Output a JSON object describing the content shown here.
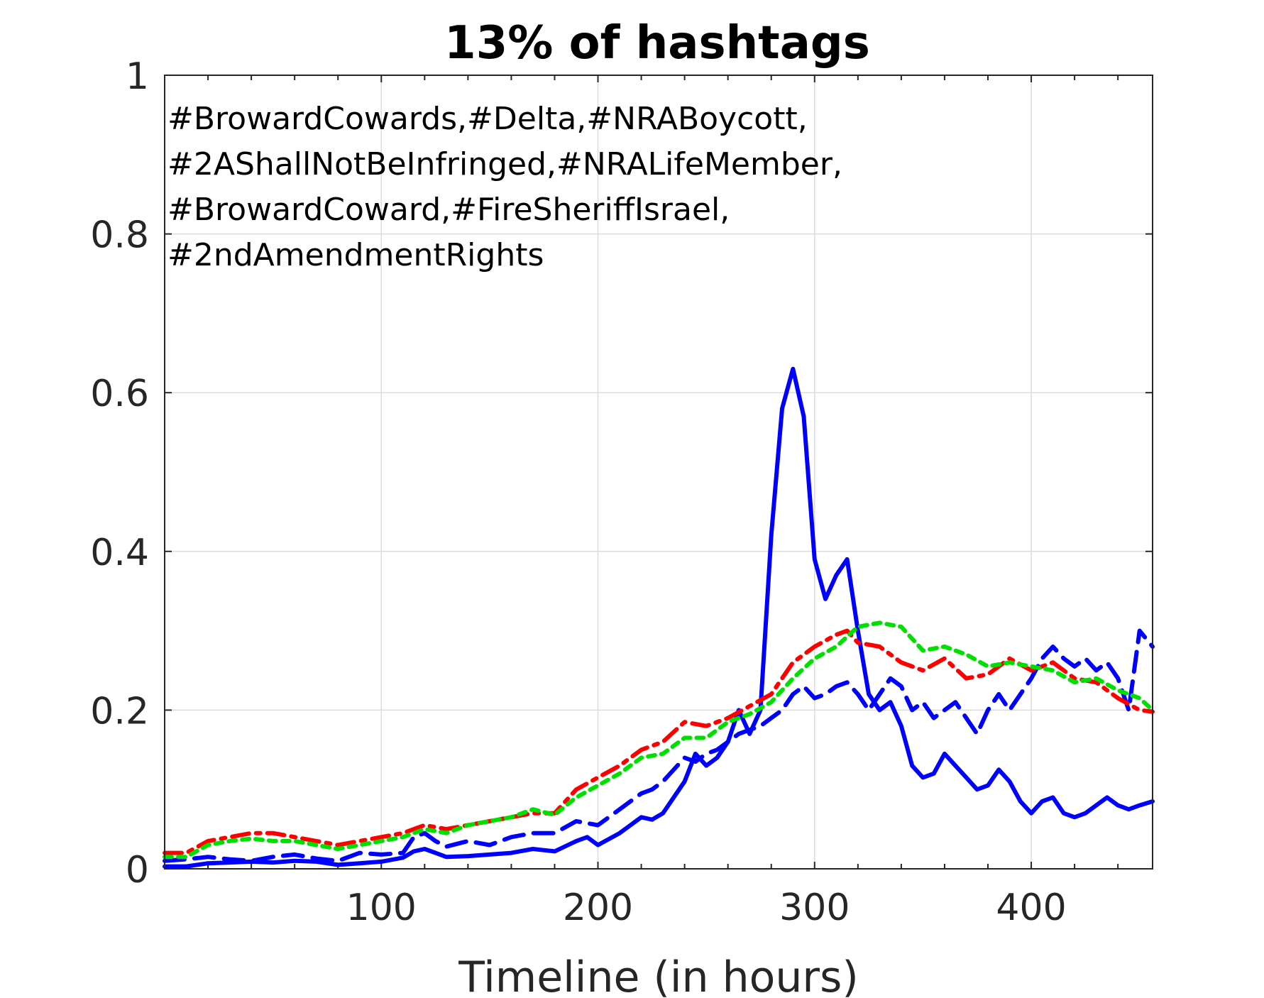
{
  "chart_data": {
    "type": "line",
    "title": "13% of hashtags",
    "xlabel": "Timeline (in hours)",
    "ylabel": "",
    "xlim": [
      0,
      456
    ],
    "ylim": [
      0,
      1
    ],
    "xticks": [
      100,
      200,
      300,
      400
    ],
    "xtick_labels": [
      "100",
      "200",
      "300",
      "400"
    ],
    "yticks": [
      0,
      0.2,
      0.4,
      0.6,
      0.8,
      1
    ],
    "ytick_labels": [
      "0",
      "0.2",
      "0.4",
      "0.6",
      "0.8",
      "1"
    ],
    "grid": true,
    "annotation_lines": [
      "#BrowardCowards,#Delta,#NRABoycott,",
      "#2AShallNotBeInfringed,#NRALifeMember,",
      "#BrowardCoward,#FireSheriffIsrael,",
      "#2ndAmendmentRights"
    ],
    "series": [
      {
        "color": "#0000ff",
        "style": "solid",
        "x": [
          0,
          10,
          20,
          30,
          40,
          50,
          60,
          70,
          80,
          90,
          100,
          110,
          115,
          120,
          125,
          130,
          140,
          150,
          160,
          170,
          180,
          190,
          195,
          200,
          210,
          220,
          225,
          230,
          240,
          245,
          250,
          255,
          260,
          265,
          270,
          275,
          280,
          285,
          290,
          295,
          300,
          305,
          310,
          315,
          320,
          325,
          330,
          335,
          340,
          345,
          350,
          355,
          360,
          365,
          370,
          375,
          380,
          385,
          390,
          395,
          400,
          405,
          410,
          415,
          420,
          425,
          430,
          435,
          440,
          445,
          450,
          456
        ],
        "y": [
          0.003,
          0.003,
          0.007,
          0.008,
          0.009,
          0.008,
          0.01,
          0.009,
          0.005,
          0.007,
          0.009,
          0.014,
          0.022,
          0.025,
          0.02,
          0.015,
          0.016,
          0.018,
          0.02,
          0.025,
          0.022,
          0.035,
          0.04,
          0.03,
          0.045,
          0.065,
          0.062,
          0.07,
          0.11,
          0.145,
          0.13,
          0.14,
          0.16,
          0.2,
          0.17,
          0.2,
          0.42,
          0.58,
          0.63,
          0.57,
          0.39,
          0.34,
          0.37,
          0.39,
          0.3,
          0.22,
          0.2,
          0.21,
          0.18,
          0.13,
          0.115,
          0.12,
          0.145,
          0.13,
          0.115,
          0.1,
          0.105,
          0.125,
          0.11,
          0.085,
          0.07,
          0.085,
          0.09,
          0.07,
          0.065,
          0.07,
          0.08,
          0.09,
          0.08,
          0.075,
          0.08,
          0.085
        ]
      },
      {
        "color": "#0000ff",
        "style": "dashed",
        "x": [
          0,
          10,
          20,
          30,
          40,
          50,
          60,
          70,
          80,
          90,
          100,
          110,
          115,
          120,
          125,
          130,
          140,
          150,
          160,
          170,
          180,
          190,
          200,
          210,
          220,
          225,
          230,
          240,
          245,
          250,
          255,
          260,
          265,
          270,
          275,
          280,
          285,
          290,
          295,
          300,
          305,
          310,
          315,
          320,
          325,
          330,
          335,
          340,
          345,
          350,
          355,
          360,
          365,
          370,
          375,
          380,
          385,
          390,
          395,
          400,
          405,
          410,
          415,
          420,
          425,
          430,
          435,
          440,
          445,
          450,
          456
        ],
        "y": [
          0.01,
          0.012,
          0.015,
          0.012,
          0.01,
          0.015,
          0.018,
          0.013,
          0.01,
          0.02,
          0.018,
          0.02,
          0.04,
          0.045,
          0.035,
          0.028,
          0.035,
          0.03,
          0.04,
          0.045,
          0.045,
          0.06,
          0.055,
          0.075,
          0.095,
          0.1,
          0.11,
          0.14,
          0.135,
          0.145,
          0.15,
          0.16,
          0.17,
          0.175,
          0.18,
          0.19,
          0.2,
          0.22,
          0.23,
          0.215,
          0.22,
          0.23,
          0.235,
          0.22,
          0.2,
          0.22,
          0.24,
          0.23,
          0.2,
          0.21,
          0.19,
          0.2,
          0.21,
          0.19,
          0.17,
          0.2,
          0.22,
          0.2,
          0.22,
          0.24,
          0.265,
          0.28,
          0.265,
          0.255,
          0.265,
          0.25,
          0.26,
          0.24,
          0.2,
          0.3,
          0.28
        ]
      },
      {
        "color": "#ff0000",
        "style": "dashdot",
        "x": [
          0,
          10,
          20,
          30,
          40,
          50,
          60,
          70,
          80,
          90,
          100,
          110,
          120,
          130,
          140,
          150,
          160,
          170,
          180,
          190,
          200,
          210,
          220,
          230,
          240,
          250,
          260,
          270,
          280,
          290,
          300,
          310,
          315,
          320,
          330,
          340,
          350,
          360,
          370,
          380,
          390,
          400,
          410,
          420,
          430,
          440,
          450,
          456
        ],
        "y": [
          0.02,
          0.02,
          0.035,
          0.04,
          0.045,
          0.045,
          0.04,
          0.035,
          0.03,
          0.035,
          0.04,
          0.045,
          0.055,
          0.05,
          0.055,
          0.06,
          0.065,
          0.07,
          0.07,
          0.1,
          0.115,
          0.13,
          0.15,
          0.16,
          0.185,
          0.18,
          0.19,
          0.205,
          0.22,
          0.26,
          0.28,
          0.295,
          0.3,
          0.285,
          0.28,
          0.26,
          0.25,
          0.265,
          0.24,
          0.245,
          0.265,
          0.25,
          0.26,
          0.24,
          0.235,
          0.215,
          0.2,
          0.198
        ]
      },
      {
        "color": "#00e000",
        "style": "dotted",
        "x": [
          0,
          10,
          20,
          30,
          40,
          50,
          60,
          70,
          80,
          90,
          100,
          110,
          120,
          130,
          140,
          150,
          160,
          170,
          180,
          190,
          200,
          210,
          220,
          230,
          240,
          250,
          260,
          270,
          280,
          290,
          300,
          310,
          320,
          330,
          340,
          350,
          360,
          370,
          380,
          390,
          400,
          410,
          420,
          430,
          440,
          450,
          456
        ],
        "y": [
          0.015,
          0.015,
          0.03,
          0.035,
          0.038,
          0.035,
          0.035,
          0.03,
          0.025,
          0.03,
          0.035,
          0.04,
          0.05,
          0.045,
          0.055,
          0.06,
          0.065,
          0.075,
          0.068,
          0.09,
          0.105,
          0.12,
          0.14,
          0.145,
          0.165,
          0.165,
          0.185,
          0.195,
          0.21,
          0.24,
          0.265,
          0.28,
          0.305,
          0.31,
          0.305,
          0.275,
          0.28,
          0.27,
          0.255,
          0.26,
          0.255,
          0.25,
          0.235,
          0.24,
          0.225,
          0.215,
          0.2
        ]
      }
    ]
  }
}
